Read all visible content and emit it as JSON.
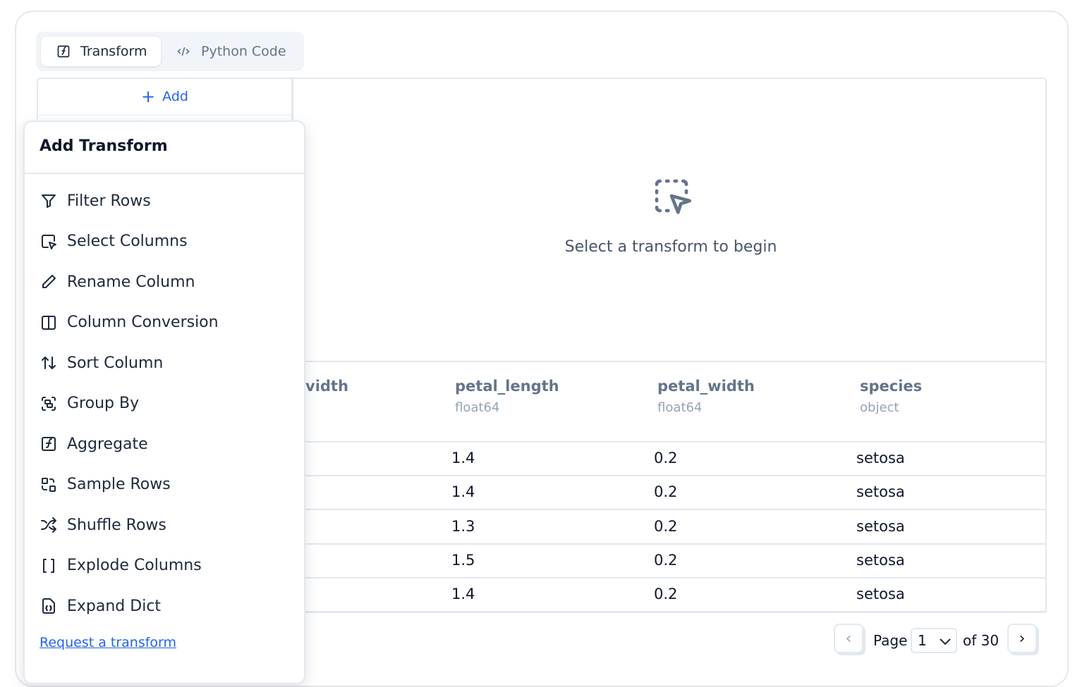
{
  "tabs": [
    {
      "label": "Transform",
      "icon": "function-square-icon",
      "active": true
    },
    {
      "label": "Python Code",
      "icon": "code-icon",
      "active": false
    }
  ],
  "add_button": "Add",
  "empty_state": {
    "icon": "dashed-cursor-select-icon",
    "text": "Select a transform to begin"
  },
  "table": {
    "columns": [
      {
        "name": "vidth",
        "dtype": ""
      },
      {
        "name": "petal_length",
        "dtype": "float64"
      },
      {
        "name": "petal_width",
        "dtype": "float64"
      },
      {
        "name": "species",
        "dtype": "object"
      }
    ],
    "rows": [
      [
        "1.4",
        "0.2",
        "setosa"
      ],
      [
        "1.4",
        "0.2",
        "setosa"
      ],
      [
        "1.3",
        "0.2",
        "setosa"
      ],
      [
        "1.5",
        "0.2",
        "setosa"
      ],
      [
        "1.4",
        "0.2",
        "setosa"
      ]
    ]
  },
  "popup": {
    "title": "Add Transform",
    "items": [
      {
        "label": "Filter Rows",
        "icon": "filter-icon"
      },
      {
        "label": "Select Columns",
        "icon": "select-cursor-icon"
      },
      {
        "label": "Rename Column",
        "icon": "pencil-icon"
      },
      {
        "label": "Column Conversion",
        "icon": "columns-icon"
      },
      {
        "label": "Sort Column",
        "icon": "arrow-up-down-icon"
      },
      {
        "label": "Group By",
        "icon": "group-icon"
      },
      {
        "label": "Aggregate",
        "icon": "function-square-icon"
      },
      {
        "label": "Sample Rows",
        "icon": "sample-icon"
      },
      {
        "label": "Shuffle Rows",
        "icon": "shuffle-icon"
      },
      {
        "label": "Explode Columns",
        "icon": "brackets-icon"
      },
      {
        "label": "Expand Dict",
        "icon": "file-braces-icon"
      }
    ],
    "link": "Request a transform"
  },
  "pagination": {
    "page_label": "Page",
    "current": "1",
    "of_label": "of 30"
  },
  "colors": {
    "accent": "#2563eb",
    "border": "#e2e8f0"
  }
}
